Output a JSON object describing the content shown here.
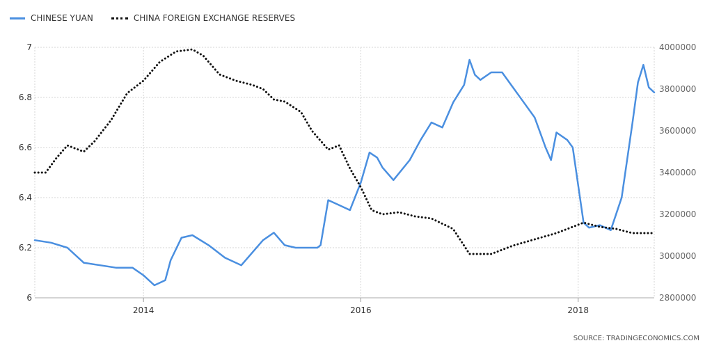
{
  "legend": {
    "items": [
      {
        "label": "CHINESE YUAN",
        "style": "solid",
        "color": "#4a8fe0"
      },
      {
        "label": "CHINA FOREIGN EXCHANGE RESERVES",
        "style": "dotted",
        "color": "#111111"
      }
    ]
  },
  "source": "SOURCE: TRADINGECONOMICS.COM",
  "chart_data": {
    "type": "line",
    "title": "",
    "xlabel": "",
    "ylabel": "",
    "x_axis": {
      "ticks": [
        2014,
        2016,
        2018
      ],
      "range": [
        2013.0,
        2018.7
      ]
    },
    "y_left": {
      "ticks": [
        "6",
        "6.2",
        "6.4",
        "6.6",
        "6.8",
        "7"
      ],
      "range": [
        6.0,
        7.0
      ]
    },
    "y_right": {
      "ticks": [
        "2800000",
        "3000000",
        "3200000",
        "3400000",
        "3600000",
        "3800000",
        "4000000"
      ],
      "range": [
        2800000,
        4000000
      ]
    },
    "grid": true,
    "legend_position": "top-left",
    "series": [
      {
        "name": "CHINESE YUAN",
        "axis": "left",
        "style": "solid",
        "color": "#4a8fe0",
        "x": [
          2013.0,
          2013.15,
          2013.3,
          2013.45,
          2013.6,
          2013.75,
          2013.9,
          2014.0,
          2014.1,
          2014.2,
          2014.25,
          2014.35,
          2014.45,
          2014.6,
          2014.75,
          2014.9,
          2015.0,
          2015.1,
          2015.2,
          2015.3,
          2015.4,
          2015.5,
          2015.6,
          2015.63,
          2015.7,
          2015.8,
          2015.9,
          2016.0,
          2016.08,
          2016.15,
          2016.2,
          2016.3,
          2016.45,
          2016.55,
          2016.65,
          2016.75,
          2016.85,
          2016.95,
          2017.0,
          2017.05,
          2017.1,
          2017.2,
          2017.3,
          2017.4,
          2017.5,
          2017.6,
          2017.7,
          2017.75,
          2017.8,
          2017.9,
          2017.95,
          2018.0,
          2018.05,
          2018.1,
          2018.2,
          2018.3,
          2018.4,
          2018.5,
          2018.55,
          2018.6,
          2018.65,
          2018.7
        ],
        "values": [
          6.23,
          6.22,
          6.2,
          6.14,
          6.13,
          6.12,
          6.12,
          6.09,
          6.05,
          6.07,
          6.15,
          6.24,
          6.25,
          6.21,
          6.16,
          6.13,
          6.18,
          6.23,
          6.26,
          6.21,
          6.2,
          6.2,
          6.2,
          6.21,
          6.39,
          6.37,
          6.35,
          6.46,
          6.58,
          6.56,
          6.52,
          6.47,
          6.55,
          6.63,
          6.7,
          6.68,
          6.78,
          6.85,
          6.95,
          6.89,
          6.87,
          6.9,
          6.9,
          6.84,
          6.78,
          6.72,
          6.6,
          6.55,
          6.66,
          6.63,
          6.6,
          6.45,
          6.3,
          6.28,
          6.29,
          6.27,
          6.4,
          6.7,
          6.86,
          6.93,
          6.84,
          6.82
        ]
      },
      {
        "name": "CHINA FOREIGN EXCHANGE RESERVES",
        "axis": "right",
        "style": "dotted",
        "color": "#111111",
        "x": [
          2013.0,
          2013.1,
          2013.2,
          2013.3,
          2013.45,
          2013.55,
          2013.7,
          2013.85,
          2014.0,
          2014.15,
          2014.3,
          2014.45,
          2014.55,
          2014.7,
          2014.85,
          2015.0,
          2015.1,
          2015.2,
          2015.3,
          2015.45,
          2015.55,
          2015.7,
          2015.8,
          2015.9,
          2016.0,
          2016.1,
          2016.2,
          2016.35,
          2016.5,
          2016.65,
          2016.85,
          2017.0,
          2017.2,
          2017.4,
          2017.6,
          2017.8,
          2017.95,
          2018.05,
          2018.2,
          2018.35,
          2018.5,
          2018.7
        ],
        "values": [
          3400000,
          3400000,
          3470000,
          3530000,
          3500000,
          3550000,
          3650000,
          3780000,
          3840000,
          3930000,
          3980000,
          3990000,
          3960000,
          3870000,
          3840000,
          3820000,
          3800000,
          3750000,
          3740000,
          3690000,
          3600000,
          3510000,
          3530000,
          3420000,
          3330000,
          3220000,
          3200000,
          3210000,
          3190000,
          3180000,
          3130000,
          3010000,
          3010000,
          3050000,
          3080000,
          3110000,
          3140000,
          3160000,
          3140000,
          3130000,
          3110000,
          3110000
        ]
      }
    ]
  }
}
